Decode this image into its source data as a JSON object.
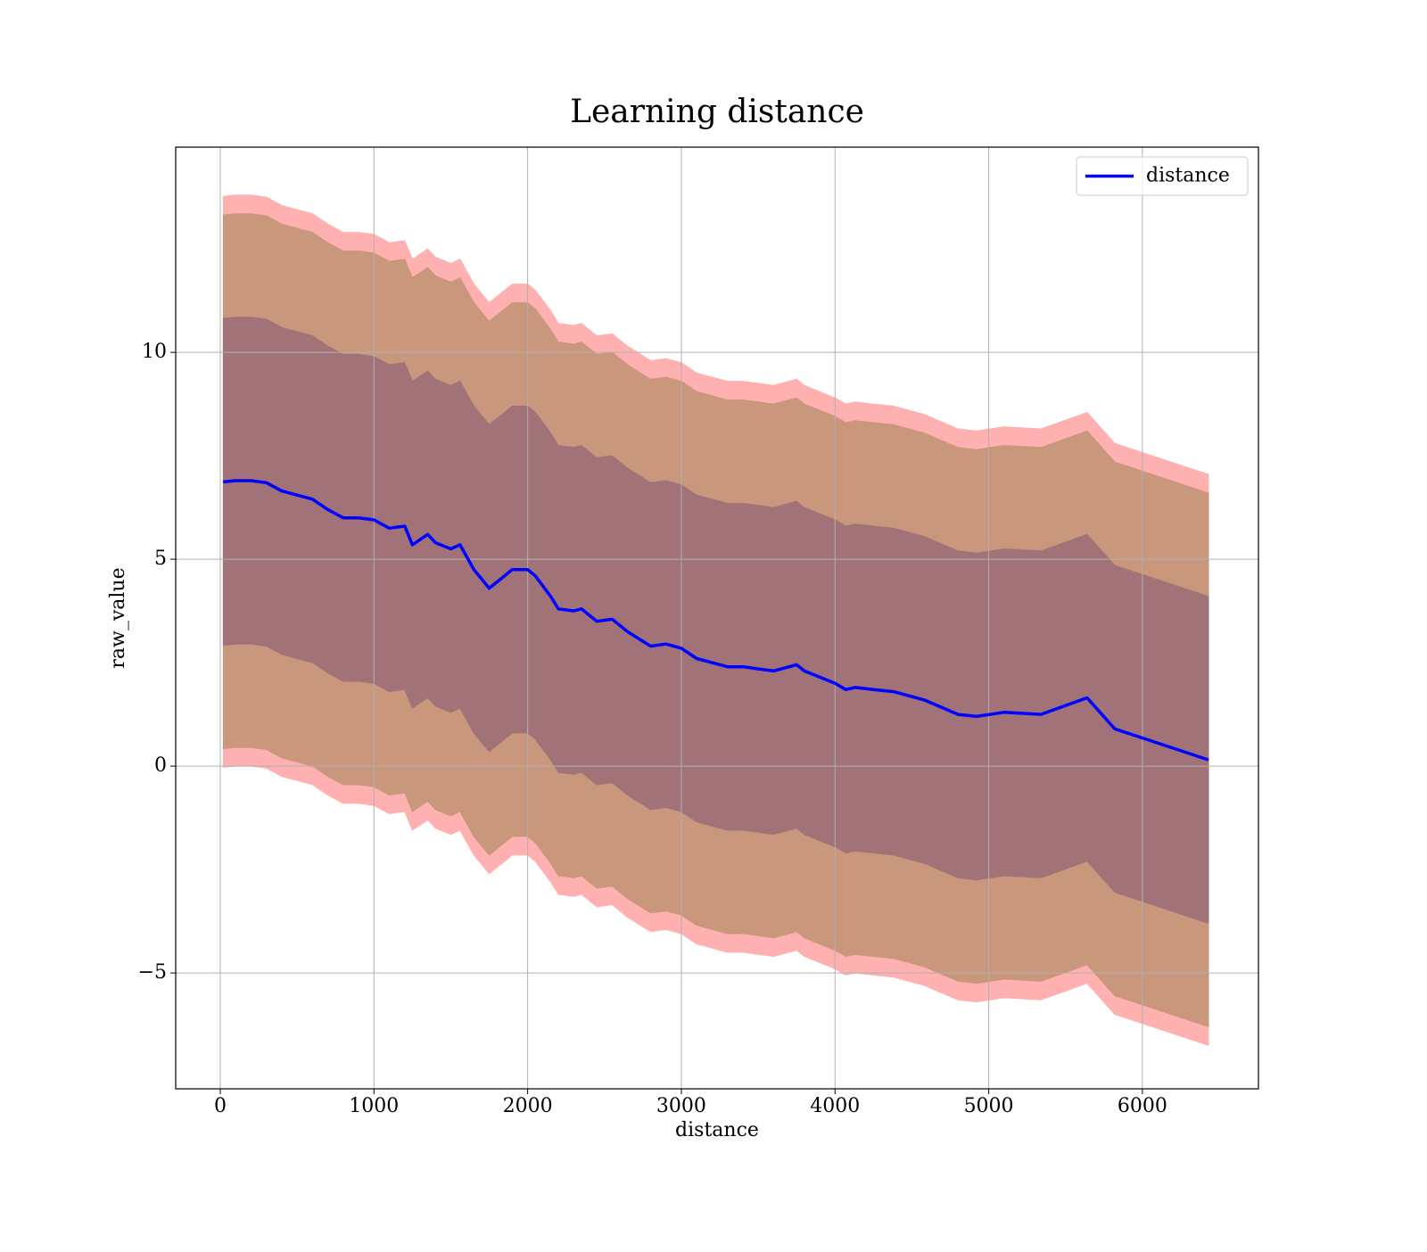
{
  "chart_data": {
    "type": "line",
    "title": "Learning distance",
    "xlabel": "distance",
    "ylabel": "raw_value",
    "x": [
      20,
      100,
      200,
      300,
      400,
      500,
      600,
      700,
      800,
      900,
      1000,
      1100,
      1200,
      1250,
      1350,
      1400,
      1500,
      1560,
      1650,
      1750,
      1850,
      1900,
      2000,
      2050,
      2150,
      2200,
      2300,
      2350,
      2450,
      2550,
      2650,
      2800,
      2900,
      3000,
      3100,
      3200,
      3300,
      3400,
      3500,
      3600,
      3750,
      3800,
      3900,
      4000,
      4070,
      4130,
      4250,
      4380,
      4580,
      4800,
      4920,
      5100,
      5340,
      5640,
      5820,
      6430
    ],
    "series": [
      {
        "name": "distance",
        "color": "#0000ff",
        "values": [
          6.87,
          6.9,
          6.9,
          6.85,
          6.65,
          6.55,
          6.45,
          6.2,
          6.0,
          6.0,
          5.95,
          5.75,
          5.8,
          5.35,
          5.6,
          5.4,
          5.25,
          5.35,
          4.75,
          4.3,
          4.6,
          4.75,
          4.75,
          4.6,
          4.1,
          3.8,
          3.75,
          3.8,
          3.5,
          3.55,
          3.25,
          2.9,
          2.95,
          2.85,
          2.6,
          2.5,
          2.4,
          2.4,
          2.35,
          2.3,
          2.45,
          2.3,
          2.15,
          2.0,
          1.85,
          1.9,
          1.85,
          1.8,
          1.6,
          1.25,
          1.2,
          1.3,
          1.25,
          1.65,
          0.9,
          0.15
        ]
      }
    ],
    "bands": [
      {
        "color": "#ffb1b1",
        "upper": [
          13.77,
          13.8,
          13.8,
          13.75,
          13.55,
          13.45,
          13.35,
          13.1,
          12.9,
          12.9,
          12.85,
          12.65,
          12.7,
          12.25,
          12.5,
          12.3,
          12.15,
          12.25,
          11.65,
          11.2,
          11.5,
          11.65,
          11.65,
          11.5,
          11.0,
          10.7,
          10.65,
          10.7,
          10.4,
          10.45,
          10.15,
          9.8,
          9.85,
          9.75,
          9.5,
          9.4,
          9.3,
          9.3,
          9.25,
          9.2,
          9.35,
          9.2,
          9.05,
          8.9,
          8.75,
          8.8,
          8.75,
          8.7,
          8.5,
          8.15,
          8.1,
          8.2,
          8.15,
          8.55,
          7.8,
          7.05
        ],
        "lower": [
          -0.03,
          0,
          0,
          -0.05,
          -0.25,
          -0.35,
          -0.45,
          -0.7,
          -0.9,
          -0.9,
          -0.95,
          -1.15,
          -1.1,
          -1.55,
          -1.3,
          -1.5,
          -1.65,
          -1.55,
          -2.15,
          -2.6,
          -2.3,
          -2.15,
          -2.15,
          -2.3,
          -2.8,
          -3.1,
          -3.15,
          -3.1,
          -3.4,
          -3.35,
          -3.65,
          -4.0,
          -3.95,
          -4.05,
          -4.3,
          -4.4,
          -4.5,
          -4.5,
          -4.55,
          -4.6,
          -4.45,
          -4.6,
          -4.75,
          -4.9,
          -5.05,
          -5.0,
          -5.05,
          -5.1,
          -5.3,
          -5.65,
          -5.7,
          -5.6,
          -5.65,
          -5.25,
          -6.0,
          -6.75
        ]
      },
      {
        "color": "#c9977b",
        "upper": [
          13.32,
          13.35,
          13.35,
          13.3,
          13.1,
          13.0,
          12.9,
          12.65,
          12.45,
          12.45,
          12.4,
          12.2,
          12.25,
          11.8,
          12.05,
          11.85,
          11.7,
          11.8,
          11.2,
          10.75,
          11.05,
          11.2,
          11.2,
          11.05,
          10.55,
          10.25,
          10.2,
          10.25,
          9.95,
          10.0,
          9.7,
          9.35,
          9.4,
          9.3,
          9.05,
          8.95,
          8.85,
          8.85,
          8.8,
          8.75,
          8.9,
          8.75,
          8.6,
          8.45,
          8.3,
          8.35,
          8.3,
          8.25,
          8.05,
          7.7,
          7.65,
          7.75,
          7.7,
          8.1,
          7.35,
          6.6
        ],
        "lower": [
          0.42,
          0.45,
          0.45,
          0.4,
          0.2,
          0.1,
          0,
          -0.25,
          -0.45,
          -0.45,
          -0.5,
          -0.7,
          -0.65,
          -1.1,
          -0.85,
          -1.05,
          -1.2,
          -1.1,
          -1.7,
          -2.15,
          -1.85,
          -1.7,
          -1.7,
          -1.85,
          -2.35,
          -2.65,
          -2.7,
          -2.65,
          -2.95,
          -2.9,
          -3.2,
          -3.55,
          -3.5,
          -3.6,
          -3.85,
          -3.95,
          -4.05,
          -4.05,
          -4.1,
          -4.15,
          -4.0,
          -4.15,
          -4.3,
          -4.45,
          -4.6,
          -4.55,
          -4.6,
          -4.65,
          -4.85,
          -5.2,
          -5.25,
          -5.15,
          -5.2,
          -4.8,
          -5.55,
          -6.3
        ]
      },
      {
        "color": "#a27279",
        "upper": [
          10.82,
          10.85,
          10.85,
          10.8,
          10.6,
          10.5,
          10.4,
          10.15,
          9.95,
          9.95,
          9.9,
          9.7,
          9.75,
          9.3,
          9.55,
          9.35,
          9.2,
          9.3,
          8.7,
          8.25,
          8.55,
          8.7,
          8.7,
          8.55,
          8.05,
          7.75,
          7.7,
          7.75,
          7.45,
          7.5,
          7.2,
          6.85,
          6.9,
          6.8,
          6.55,
          6.45,
          6.35,
          6.35,
          6.3,
          6.25,
          6.4,
          6.25,
          6.1,
          5.95,
          5.8,
          5.85,
          5.8,
          5.75,
          5.55,
          5.2,
          5.15,
          5.25,
          5.2,
          5.6,
          4.85,
          4.1
        ],
        "lower": [
          2.92,
          2.95,
          2.95,
          2.9,
          2.7,
          2.6,
          2.5,
          2.25,
          2.05,
          2.05,
          2.0,
          1.8,
          1.85,
          1.4,
          1.65,
          1.45,
          1.3,
          1.4,
          0.8,
          0.35,
          0.65,
          0.8,
          0.8,
          0.65,
          0.15,
          -0.15,
          -0.2,
          -0.15,
          -0.45,
          -0.4,
          -0.7,
          -1.05,
          -1.0,
          -1.1,
          -1.35,
          -1.45,
          -1.55,
          -1.55,
          -1.6,
          -1.65,
          -1.5,
          -1.65,
          -1.8,
          -1.95,
          -2.1,
          -2.05,
          -2.1,
          -2.15,
          -2.35,
          -2.7,
          -2.75,
          -2.65,
          -2.7,
          -2.3,
          -3.05,
          -3.8
        ]
      }
    ],
    "xlim": [
      -290,
      6755
    ],
    "ylim": [
      -7.8,
      14.96
    ],
    "xticks": [
      0,
      1000,
      2000,
      3000,
      4000,
      5000,
      6000
    ],
    "yticks": [
      {
        "value": -5,
        "label": "−5"
      },
      0,
      5,
      10
    ],
    "grid": true,
    "legend": "upper right"
  }
}
